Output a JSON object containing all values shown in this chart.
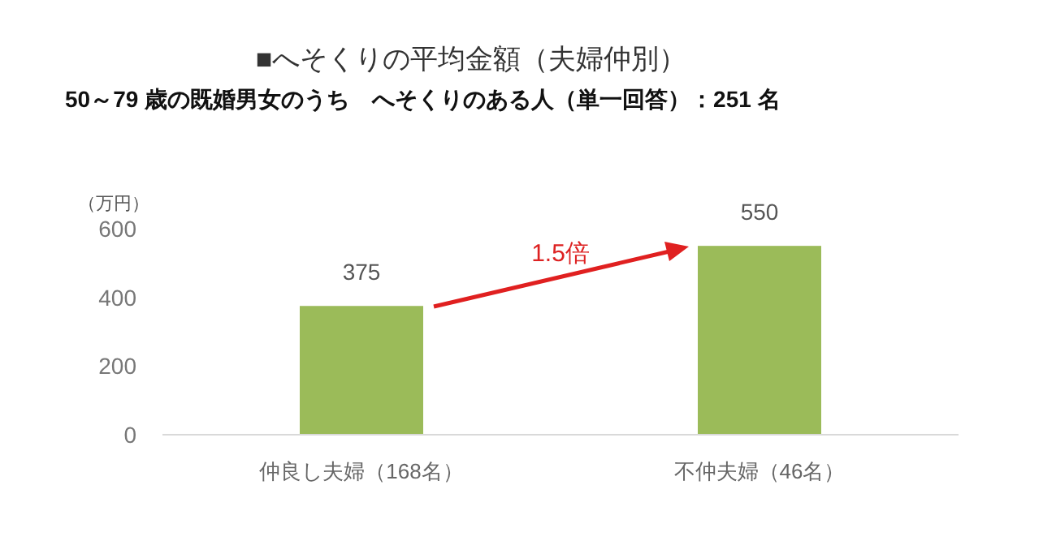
{
  "chart_data": {
    "type": "bar",
    "title": "■へそくりの平均金額（夫婦仲別）",
    "subtitle": "50～79 歳の既婚男女のうち　へそくりのある人（単一回答）：251 名",
    "ylabel": "（万円）",
    "categories": [
      "仲良し夫婦（168名）",
      "不仲夫婦（46名）"
    ],
    "values": [
      375,
      550
    ],
    "color": "#9bbb59",
    "data_labels": true,
    "ylim": [
      0,
      600
    ],
    "yticks": [
      0,
      200,
      400,
      600
    ],
    "annotations": [
      "1.5倍"
    ]
  }
}
